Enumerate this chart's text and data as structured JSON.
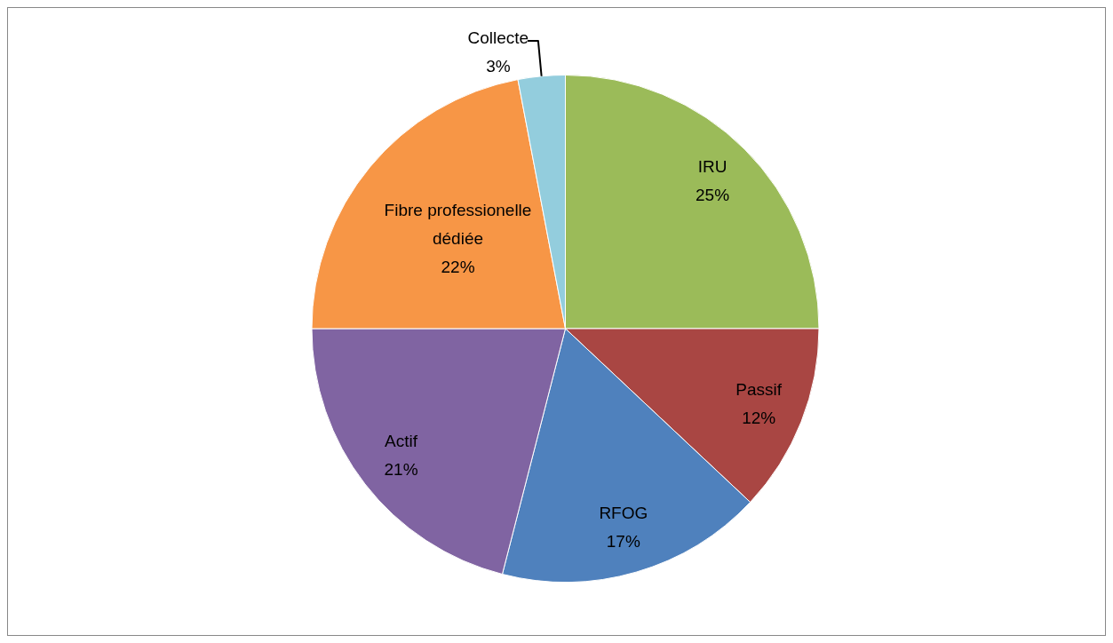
{
  "chart_data": {
    "type": "pie",
    "categories": [
      "IRU",
      "Passif",
      "RFOG",
      "Actif",
      "Fibre professionelle dédiée",
      "Collecte"
    ],
    "values": [
      25,
      12,
      17,
      21,
      22,
      3
    ],
    "colors": [
      "#9bbb59",
      "#a94643",
      "#4f81bd",
      "#8064a2",
      "#f79646",
      "#93cddd"
    ],
    "value_labels": [
      "25%",
      "12%",
      "17%",
      "21%",
      "22%",
      "3%"
    ],
    "legend": false
  }
}
